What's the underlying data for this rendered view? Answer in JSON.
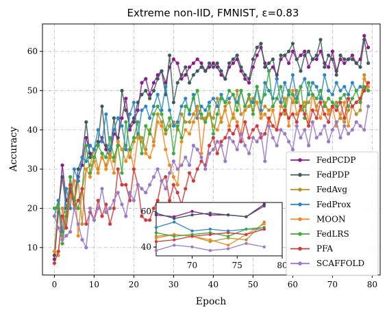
{
  "chart_data": {
    "type": "line",
    "title": "Extreme non-IID, FMNIST, ε=0.83",
    "xlabel": "Epoch",
    "ylabel": "Accuracy",
    "xlim": [
      -3,
      82
    ],
    "ylim": [
      3,
      67
    ],
    "xticks": [
      0,
      10,
      20,
      30,
      40,
      50,
      60,
      70,
      80
    ],
    "yticks": [
      10,
      20,
      30,
      40,
      50,
      60
    ],
    "grid": true,
    "legend_position": "lower-right",
    "x": [
      0,
      1,
      2,
      3,
      4,
      5,
      6,
      7,
      8,
      9,
      10,
      11,
      12,
      13,
      14,
      15,
      16,
      17,
      18,
      19,
      20,
      21,
      22,
      23,
      24,
      25,
      26,
      27,
      28,
      29,
      30,
      31,
      32,
      33,
      34,
      35,
      36,
      37,
      38,
      39,
      40,
      41,
      42,
      43,
      44,
      45,
      46,
      47,
      48,
      49,
      50,
      51,
      52,
      53,
      54,
      55,
      56,
      57,
      58,
      59,
      60,
      61,
      62,
      63,
      64,
      65,
      66,
      67,
      68,
      69,
      70,
      71,
      72,
      73,
      74,
      75,
      76,
      77,
      78,
      79
    ],
    "series": [
      {
        "name": "FedPCDP",
        "color": "#8b1a8b",
        "values": [
          7,
          19,
          31,
          22,
          24,
          21,
          28,
          31,
          38,
          34,
          33,
          36,
          38,
          35,
          33,
          39,
          38,
          43,
          48,
          40,
          42,
          45,
          52,
          53,
          49,
          52,
          54,
          55,
          52,
          56,
          58,
          57,
          53,
          54,
          56,
          57,
          58,
          57,
          55,
          56,
          57,
          56,
          54,
          53,
          56,
          57,
          58,
          55,
          53,
          52,
          56,
          59,
          61,
          57,
          55,
          56,
          54,
          58,
          59,
          57,
          60,
          58,
          59,
          60,
          56,
          58,
          58,
          60,
          57,
          56,
          60,
          55,
          58,
          57,
          58,
          59,
          57,
          58,
          64,
          61
        ]
      },
      {
        "name": "FedPDP",
        "color": "#3d5a5a",
        "values": [
          8,
          20,
          28,
          20,
          25,
          22,
          30,
          33,
          42,
          33,
          35,
          37,
          46,
          36,
          34,
          43,
          36,
          50,
          45,
          41,
          43,
          47,
          49,
          50,
          48,
          50,
          53,
          55,
          49,
          59,
          47,
          52,
          54,
          56,
          52,
          54,
          55,
          56,
          55,
          57,
          56,
          57,
          55,
          53,
          57,
          58,
          59,
          56,
          54,
          53,
          58,
          61,
          62,
          56,
          57,
          58,
          53,
          59,
          59,
          60,
          62,
          58,
          55,
          59,
          60,
          58,
          59,
          63,
          56,
          59,
          58,
          54,
          59,
          58,
          58,
          58,
          57,
          56,
          63,
          57
        ]
      },
      {
        "name": "FedAvg",
        "color": "#b8922f",
        "values": [
          9,
          22,
          13,
          19,
          28,
          21,
          27,
          16,
          30,
          31,
          35,
          30,
          33,
          31,
          34,
          32,
          37,
          35,
          36,
          33,
          37,
          39,
          38,
          35,
          40,
          37,
          44,
          42,
          39,
          41,
          42,
          40,
          44,
          42,
          42,
          44,
          46,
          43,
          42,
          44,
          43,
          48,
          42,
          46,
          47,
          43,
          50,
          44,
          45,
          46,
          48,
          47,
          44,
          46,
          45,
          46,
          48,
          47,
          44,
          49,
          47,
          50,
          45,
          46,
          47,
          49,
          46,
          48,
          47,
          45,
          46,
          47,
          43,
          42,
          45,
          46,
          44,
          45,
          54,
          50
        ]
      },
      {
        "name": "FedProx",
        "color": "#2e86c1",
        "values": [
          18,
          22,
          14,
          25,
          20,
          30,
          27,
          33,
          32,
          36,
          35,
          40,
          37,
          44,
          35,
          40,
          43,
          41,
          35,
          44,
          47,
          38,
          45,
          46,
          43,
          46,
          49,
          45,
          51,
          45,
          41,
          42,
          46,
          48,
          44,
          49,
          43,
          46,
          45,
          47,
          48,
          46,
          49,
          47,
          48,
          49,
          47,
          50,
          46,
          48,
          47,
          51,
          45,
          52,
          50,
          48,
          53,
          47,
          52,
          49,
          54,
          48,
          51,
          53,
          49,
          52,
          51,
          48,
          54,
          50,
          49,
          52,
          50,
          51,
          49,
          52,
          50,
          51,
          50,
          52
        ]
      },
      {
        "name": "MOON",
        "color": "#f08a24",
        "values": [
          9,
          8,
          20,
          15,
          23,
          27,
          13,
          25,
          30,
          28,
          32,
          29,
          34,
          30,
          33,
          29,
          37,
          35,
          32,
          35,
          30,
          38,
          37,
          34,
          33,
          36,
          42,
          41,
          35,
          31,
          28,
          26,
          37,
          40,
          39,
          42,
          45,
          34,
          43,
          44,
          41,
          40,
          43,
          45,
          41,
          44,
          42,
          39,
          46,
          48,
          45,
          47,
          43,
          44,
          42,
          45,
          40,
          46,
          48,
          41,
          50,
          44,
          46,
          47,
          42,
          49,
          45,
          43,
          47,
          44,
          46,
          41,
          44,
          47,
          41,
          46,
          47,
          48,
          53,
          51
        ]
      },
      {
        "name": "FedLRS",
        "color": "#3caa3c",
        "values": [
          20,
          21,
          11,
          18,
          28,
          22,
          20,
          25,
          36,
          29,
          33,
          36,
          34,
          33,
          38,
          33,
          36,
          29,
          42,
          35,
          38,
          42,
          34,
          41,
          39,
          44,
          46,
          44,
          40,
          43,
          34,
          41,
          38,
          46,
          45,
          48,
          50,
          44,
          42,
          46,
          39,
          44,
          48,
          47,
          50,
          49,
          45,
          50,
          46,
          49,
          44,
          51,
          47,
          49,
          55,
          46,
          48,
          51,
          46,
          50,
          49,
          47,
          51,
          43,
          52,
          49,
          48,
          50,
          46,
          48,
          47,
          46,
          48,
          49,
          46,
          48,
          50,
          47,
          51,
          50
        ]
      },
      {
        "name": "PFA",
        "color": "#d03a3a",
        "values": [
          6,
          9,
          18,
          15,
          26,
          20,
          22,
          25,
          16,
          19,
          17,
          22,
          18,
          21,
          16,
          20,
          30,
          26,
          26,
          22,
          30,
          26,
          18,
          17,
          17,
          20,
          22,
          27,
          28,
          22,
          26,
          24,
          21,
          25,
          29,
          27,
          30,
          32,
          31,
          36,
          38,
          34,
          37,
          38,
          40,
          39,
          41,
          37,
          42,
          38,
          40,
          41,
          38,
          39,
          43,
          41,
          40,
          44,
          45,
          43,
          44,
          42,
          46,
          44,
          41,
          45,
          43,
          47,
          44,
          42,
          46,
          45,
          47,
          43,
          48,
          46,
          47,
          48,
          50,
          52
        ]
      },
      {
        "name": "SCAFFOLD",
        "color": "#9a79c9",
        "values": [
          18,
          15,
          12,
          13,
          14,
          20,
          16,
          12,
          10,
          20,
          17,
          20,
          25,
          19,
          20,
          22,
          24,
          21,
          18,
          24,
          22,
          26,
          25,
          24,
          26,
          28,
          30,
          27,
          25,
          29,
          32,
          30,
          31,
          33,
          31,
          36,
          35,
          33,
          30,
          34,
          35,
          37,
          36,
          32,
          38,
          37,
          35,
          39,
          36,
          34,
          38,
          37,
          39,
          32,
          41,
          38,
          36,
          40,
          39,
          37,
          35,
          41,
          38,
          40,
          36,
          42,
          38,
          39,
          41,
          37,
          40,
          42,
          38,
          41,
          39,
          40,
          42,
          41,
          40,
          46
        ]
      }
    ],
    "inset": {
      "xlim": [
        66,
        80
      ],
      "ylim": [
        35,
        65
      ],
      "xticks": [
        70,
        75,
        80
      ],
      "yticks": [
        40,
        60
      ],
      "grid": false
    }
  }
}
